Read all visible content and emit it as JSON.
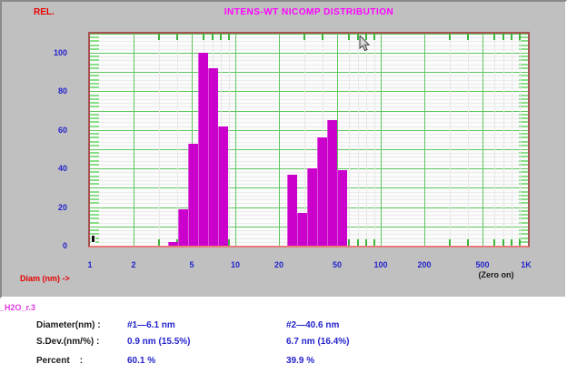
{
  "header": {
    "rel_label": "REL.",
    "title": "INTENS-WT NICOMP DISTRIBUTION"
  },
  "chart_data": {
    "type": "bar",
    "title": "INTENS-WT NICOMP DISTRIBUTION",
    "ylabel": "REL.",
    "xlabel": "Diam (nm) ->",
    "x_scale": "log",
    "xlim": [
      1,
      1000
    ],
    "ylim": [
      0,
      112
    ],
    "grid": true,
    "annotation": "(Zero on)",
    "x_ticks": [
      {
        "label": "1",
        "value": 1
      },
      {
        "label": "2",
        "value": 2
      },
      {
        "label": "5",
        "value": 5
      },
      {
        "label": "10",
        "value": 10
      },
      {
        "label": "20",
        "value": 20
      },
      {
        "label": "50",
        "value": 50
      },
      {
        "label": "100",
        "value": 100
      },
      {
        "label": "200",
        "value": 200
      },
      {
        "label": "500",
        "value": 500
      },
      {
        "label": "1K",
        "value": 1000
      }
    ],
    "y_ticks": [
      0,
      20,
      40,
      60,
      80,
      100
    ],
    "bars": [
      {
        "bin_lo_nm": 3.45,
        "bin_hi_nm": 4.04,
        "value": 2
      },
      {
        "bin_lo_nm": 4.04,
        "bin_hi_nm": 4.73,
        "value": 19
      },
      {
        "bin_lo_nm": 4.73,
        "bin_hi_nm": 5.54,
        "value": 53
      },
      {
        "bin_lo_nm": 5.54,
        "bin_hi_nm": 6.49,
        "value": 100
      },
      {
        "bin_lo_nm": 6.49,
        "bin_hi_nm": 7.6,
        "value": 92
      },
      {
        "bin_lo_nm": 7.6,
        "bin_hi_nm": 8.91,
        "value": 62
      },
      {
        "bin_lo_nm": 22.7,
        "bin_hi_nm": 26.6,
        "value": 37
      },
      {
        "bin_lo_nm": 26.6,
        "bin_hi_nm": 31.2,
        "value": 17
      },
      {
        "bin_lo_nm": 31.2,
        "bin_hi_nm": 36.6,
        "value": 40
      },
      {
        "bin_lo_nm": 36.6,
        "bin_hi_nm": 42.9,
        "value": 56
      },
      {
        "bin_lo_nm": 42.9,
        "bin_hi_nm": 50.3,
        "value": 65
      },
      {
        "bin_lo_nm": 50.3,
        "bin_hi_nm": 59.0,
        "value": 39
      }
    ]
  },
  "footer": {
    "sample_label": "_H2O_r.3",
    "rows": [
      {
        "label": "Diameter(nm) :",
        "peak1": "#1—6.1 nm",
        "peak2": "#2—40.6 nm"
      },
      {
        "label": "S.Dev.(nm/%) :",
        "peak1": "0.9 nm (15.5%)",
        "peak2": "6.7 nm (16.4%)"
      },
      {
        "label": "Percent    :",
        "peak1": "60.1 %",
        "peak2": "39.9 %"
      }
    ]
  },
  "colors": {
    "panel_bg": "#c0c0c0",
    "bar": "#cc00cc",
    "grid_green": "#5fc75f",
    "title_magenta": "#ff00ff",
    "axis_red": "#e80000",
    "value_blue": "#2323cc",
    "plot_border": "#a85252"
  }
}
